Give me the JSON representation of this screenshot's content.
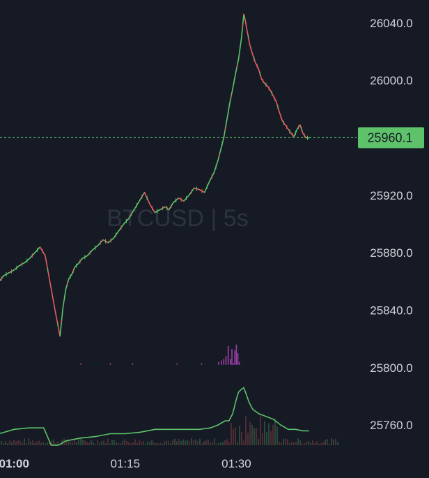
{
  "chart_data": {
    "type": "line",
    "watermark": "BTCUSD | 5s",
    "price_axis": {
      "ticks": [
        "26040.0",
        "26000.0",
        "25960.0",
        "25920.0",
        "25880.0",
        "25840.0",
        "25800.0",
        "25760.0"
      ],
      "tick_values": [
        26040,
        26000,
        25960,
        25920,
        25880,
        25840,
        25800,
        25760
      ],
      "ylim": [
        25745,
        26056
      ]
    },
    "time_axis": {
      "ticks": [
        {
          "label": "01:00",
          "minute": 60,
          "bold": true
        },
        {
          "label": "01:15",
          "minute": 75,
          "bold": false
        },
        {
          "label": "01:30",
          "minute": 90,
          "bold": false
        }
      ],
      "xlim": [
        58.1,
        106.6
      ]
    },
    "last_price": {
      "label": "25960.1",
      "value": 25960.1,
      "color": "#5ec26a"
    },
    "price_series": {
      "x": [
        58.0,
        58.6,
        59.3,
        60.0,
        60.7,
        61.4,
        62.1,
        62.8,
        63.5,
        64.2,
        64.9,
        65.6,
        66.2,
        66.6,
        67.0,
        67.4,
        67.8,
        68.2,
        68.6,
        69.2,
        69.9,
        70.6,
        71.3,
        72.0,
        72.7,
        73.4,
        74.1,
        74.8,
        75.5,
        76.2,
        76.9,
        77.6,
        78.3,
        79.0,
        79.7,
        80.4,
        80.9,
        81.5,
        82.2,
        82.9,
        83.6,
        84.3,
        85.0,
        85.7,
        86.4,
        87.0,
        87.5,
        87.9,
        88.3,
        88.7,
        89.1,
        89.5,
        89.9,
        90.3,
        90.7,
        91.0,
        91.2,
        91.4,
        91.8,
        92.2,
        92.6,
        93.0,
        93.4,
        93.8,
        94.2,
        94.6,
        95.0,
        95.4,
        95.8,
        96.2,
        96.6,
        97.0,
        97.4,
        97.8,
        98.2,
        98.6,
        99.0,
        99.4,
        99.8
      ],
      "y": [
        25860,
        25864,
        25866,
        25868,
        25871,
        25873,
        25876,
        25880,
        25884,
        25878,
        25858,
        25838,
        25822,
        25842,
        25855,
        25862,
        25865,
        25870,
        25872,
        25876,
        25878,
        25882,
        25885,
        25889,
        25887,
        25890,
        25895,
        25900,
        25904,
        25910,
        25916,
        25922,
        25914,
        25908,
        25910,
        25912,
        25910,
        25915,
        25918,
        25916,
        25920,
        25925,
        25924,
        25922,
        25930,
        25936,
        25944,
        25952,
        25960,
        25972,
        25984,
        25994,
        26005,
        26015,
        26030,
        26046,
        26042,
        26036,
        26025,
        26018,
        26012,
        26008,
        26001,
        25998,
        25996,
        25993,
        25989,
        25985,
        25978,
        25972,
        25969,
        25966,
        25963,
        25961,
        25966,
        25969,
        25963,
        25960,
        25960
      ]
    },
    "volume_line": {
      "x": [
        58.0,
        60.0,
        62.0,
        64.0,
        65.0,
        66.0,
        67.0,
        69.0,
        71.0,
        73.0,
        75.0,
        77.0,
        79.0,
        81.0,
        83.0,
        85.0,
        86.5,
        87.5,
        88.5,
        89.0,
        89.5,
        90.0,
        90.3,
        90.7,
        91.0,
        91.3,
        91.7,
        92.2,
        93.0,
        94.0,
        95.0,
        96.0,
        97.0,
        98.0,
        99.0,
        99.8
      ],
      "y": [
        25754,
        25757,
        25758,
        25758,
        25746,
        25746,
        25749,
        25751,
        25752,
        25754,
        25754,
        25755,
        25757,
        25757,
        25757,
        25757,
        25758,
        25760,
        25763,
        25763,
        25768,
        25778,
        25783,
        25785,
        25786,
        25782,
        25776,
        25771,
        25768,
        25766,
        25764,
        25760,
        25757,
        25757,
        25756,
        25756
      ]
    },
    "volume_bars": {
      "x": [
        69.0,
        73.0,
        76.0,
        82.0,
        85.3,
        87.6,
        88.0,
        88.3,
        88.6,
        88.9,
        89.2,
        89.4,
        89.6,
        89.8,
        90.0,
        90.2,
        90.4
      ],
      "y": [
        25803,
        25803,
        25803,
        25803,
        25803,
        25804,
        25805,
        25806,
        25808,
        25815,
        25806,
        25813,
        25803,
        25812,
        25816,
        25810,
        25804
      ]
    },
    "colors": {
      "background": "#161a25",
      "axis_text": "#d1d4dc",
      "rising": "#5ec26a",
      "falling": "#e25d5f",
      "watermark": "#2d3240",
      "volume_bar": "#9b3fa8"
    }
  }
}
